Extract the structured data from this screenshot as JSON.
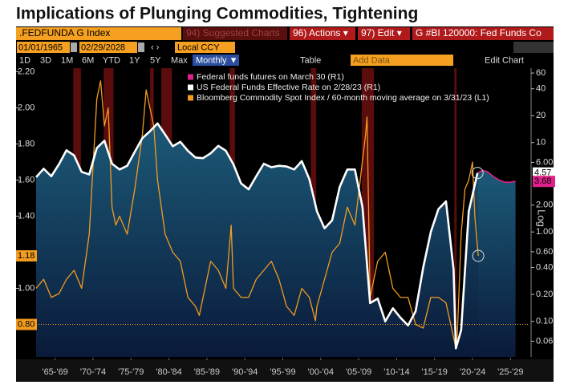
{
  "toolbar": {
    "ticker": ".FEDFUNDA G Index",
    "suggested": "94) Suggested Charts",
    "actions": "96) Actions ▾",
    "edit": "97) Edit ▾",
    "security": "G #BI 120000: Fed Funds Co",
    "start_date": "01/01/1965",
    "end_date": "02/29/2028",
    "currency": "Local CCY",
    "periods": [
      "1D",
      "3D",
      "1M",
      "6M",
      "YTD",
      "1Y",
      "5Y",
      "Max"
    ],
    "frequency": "Monthly ▼",
    "table": "Table",
    "add_data": "Add Data",
    "edit_chart": "Edit Chart"
  },
  "chart_data": {
    "type": "line",
    "title": "Implications of Plunging Commodities, Tightening",
    "y2_label": "Log",
    "xlim": [
      1965,
      2030
    ],
    "xticks": [
      {
        "value": 1967.5,
        "label": "'65-'69"
      },
      {
        "value": 1972.5,
        "label": "'70-'74"
      },
      {
        "value": 1977.5,
        "label": "'75-'79"
      },
      {
        "value": 1982.5,
        "label": "'80-'84"
      },
      {
        "value": 1987.5,
        "label": "'85-'89"
      },
      {
        "value": 1992.5,
        "label": "'90-'94"
      },
      {
        "value": 1997.5,
        "label": "'95-'99"
      },
      {
        "value": 2002.5,
        "label": "'00-'04"
      },
      {
        "value": 2007.5,
        "label": "'05-'09"
      },
      {
        "value": 2012.5,
        "label": "'10-'14"
      },
      {
        "value": 2017.5,
        "label": "'15-'19"
      },
      {
        "value": 2022.5,
        "label": "'20-'24"
      },
      {
        "value": 2027.5,
        "label": "'25-'29"
      }
    ],
    "ylim": [
      0.62,
      2.22
    ],
    "yticks": [
      {
        "value": 2.2,
        "label": "2.20"
      },
      {
        "value": 2,
        "label": "2.00"
      },
      {
        "value": 1.8,
        "label": "1.80"
      },
      {
        "value": 1.6,
        "label": "1.60"
      },
      {
        "value": 1.4,
        "label": "1.40"
      },
      {
        "value": 1,
        "label": "1.00"
      }
    ],
    "reference_line": {
      "value": 0.8,
      "label": "0.80",
      "color": "#f39c1f"
    },
    "y2lim": [
      0.04,
      68
    ],
    "y2log": true,
    "y2ticks": [
      60,
      40,
      20,
      10,
      {
        "value": 6,
        "label": "6.00"
      },
      {
        "value": 2,
        "label": "2.00"
      },
      {
        "value": 1,
        "label": "1.00"
      },
      {
        "value": 0.6,
        "label": "0.60"
      },
      {
        "value": 0.4,
        "label": "0.40"
      },
      {
        "value": 0.2,
        "label": "0.20"
      },
      {
        "value": 0.1,
        "label": "0.10"
      },
      0.06
    ],
    "recessions": [
      [
        1969.9,
        1970.9
      ],
      [
        1973.9,
        1975.2
      ],
      [
        1980,
        1980.5
      ],
      [
        1981.5,
        1982.9
      ],
      [
        1990.5,
        1991.2
      ],
      [
        2001.2,
        2001.9
      ],
      [
        2007.9,
        2009.5
      ],
      [
        2020.1,
        2020.4
      ]
    ],
    "series": [
      {
        "name": "Federal funds futures on March 30 (R1)",
        "color": "#e0208a",
        "axis": "y2",
        "x": [
          2023.15,
          2023.8,
          2024.5,
          2025.2,
          2026,
          2026.8,
          2027.5,
          2028.16
        ],
        "values": [
          4.57,
          4.9,
          4.7,
          4.2,
          3.8,
          3.6,
          3.6,
          3.68
        ]
      },
      {
        "name": "US Federal Funds Effective Rate on 2/28/23 (R1)",
        "color": "#ffffff",
        "axis": "y2",
        "x": [
          1965,
          1966,
          1967,
          1968,
          1969,
          1970,
          1971,
          1972,
          1973,
          1974,
          1975,
          1976,
          1977,
          1978,
          1979,
          1980,
          1981,
          1982,
          1983,
          1984,
          1985,
          1986,
          1987,
          1988,
          1989,
          1990,
          1991,
          1992,
          1993,
          1994,
          1995,
          1996,
          1997,
          1998,
          1999,
          2000,
          2001,
          2002,
          2003,
          2004,
          2005,
          2006,
          2007,
          2008,
          2009,
          2010,
          2011,
          2012,
          2013,
          2014,
          2015,
          2016,
          2017,
          2018,
          2019,
          2020,
          2020.3,
          2021,
          2022,
          2023.15
        ],
        "values": [
          4.1,
          5.1,
          4.2,
          5.7,
          8.2,
          7.2,
          4.7,
          4.4,
          8.7,
          10.5,
          5.8,
          5.0,
          5.5,
          7.9,
          11.2,
          13.4,
          16.4,
          12.3,
          9.1,
          10.2,
          8.1,
          6.8,
          6.7,
          7.6,
          9.2,
          8.1,
          5.7,
          3.5,
          3.0,
          4.2,
          5.8,
          5.3,
          5.5,
          5.4,
          5.0,
          6.2,
          3.9,
          1.7,
          1.1,
          1.35,
          3.2,
          5.0,
          5.0,
          1.9,
          0.16,
          0.18,
          0.1,
          0.14,
          0.11,
          0.09,
          0.13,
          0.4,
          1.0,
          1.8,
          2.2,
          0.38,
          0.05,
          0.08,
          1.7,
          4.57
        ]
      },
      {
        "name": "Bloomberg Commodity Spot Index / 60-month moving average on 3/31/23 (L1)",
        "color": "#f39c1f",
        "axis": "y",
        "x": [
          1965,
          1966,
          1967,
          1968,
          1969,
          1970,
          1971,
          1972,
          1973,
          1973.5,
          1974,
          1974.5,
          1975,
          1975.5,
          1976,
          1977,
          1978,
          1979,
          1979.5,
          1980,
          1980.5,
          1981,
          1982,
          1983,
          1984,
          1985,
          1986,
          1986.5,
          1987,
          1988,
          1989,
          1990,
          1990.7,
          1991,
          1992,
          1993,
          1994,
          1995,
          1996,
          1997,
          1998,
          1999,
          2000,
          2001,
          2001.8,
          2002,
          2003,
          2004,
          2005,
          2006,
          2007,
          2008.4,
          2008.6,
          2009,
          2009.5,
          2010,
          2011,
          2012,
          2013,
          2014,
          2015,
          2016,
          2017,
          2018,
          2019,
          2020.3,
          2020.5,
          2021,
          2021.5,
          2022,
          2022.5,
          2022.8,
          2023.25
        ],
        "values": [
          1.0,
          1.05,
          0.95,
          0.97,
          1.05,
          1.1,
          1.0,
          1.3,
          2.05,
          2.15,
          1.9,
          2.0,
          1.45,
          1.35,
          1.4,
          1.3,
          1.55,
          1.85,
          2.1,
          2.0,
          1.9,
          1.6,
          1.3,
          1.2,
          1.15,
          0.95,
          0.9,
          0.85,
          0.95,
          1.15,
          1.1,
          1.0,
          1.35,
          1.0,
          0.95,
          0.95,
          1.05,
          1.1,
          1.15,
          1.05,
          0.9,
          0.85,
          1.0,
          0.95,
          0.82,
          0.9,
          1.05,
          1.2,
          1.25,
          1.45,
          1.35,
          1.85,
          1.95,
          0.95,
          1.05,
          1.15,
          1.2,
          1.0,
          0.95,
          0.95,
          0.8,
          0.78,
          0.95,
          0.95,
          0.92,
          0.67,
          0.75,
          1.3,
          1.55,
          1.6,
          1.7,
          1.4,
          1.18
        ]
      }
    ]
  }
}
